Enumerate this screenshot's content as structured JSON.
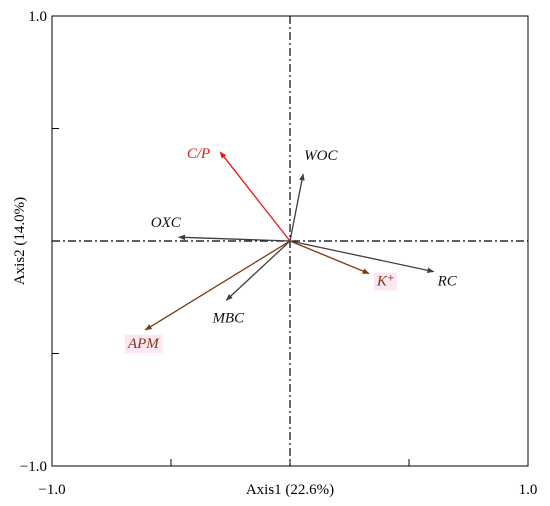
{
  "chart_data": {
    "type": "scatter",
    "subtype": "biplot-vectors",
    "xlabel": "Axis1 (22.6%)",
    "ylabel": "Axis2 (14.0%)",
    "xlim": [
      -1.0,
      1.0
    ],
    "ylim": [
      -1.0,
      1.0
    ],
    "x_tick_labels": [
      "−1.0",
      "1.0"
    ],
    "y_tick_labels": [
      "1.0",
      "−1.0"
    ],
    "grid": false,
    "legend": "none",
    "reference_lines": [
      "x=0 dash-dot",
      "y=0 dash-dot"
    ],
    "colors": {
      "gray": "#404040",
      "red": "#e8141b",
      "brown": "#7b3a12",
      "highlight": "#fde7f2"
    },
    "vectors": [
      {
        "label": "C/P",
        "x": -0.69,
        "y": 0.93,
        "color": "red"
      },
      {
        "label": "WOC",
        "x": 0.13,
        "y": 0.7,
        "color": "gray"
      },
      {
        "label": "OXC",
        "x": -1.1,
        "y": 0.04,
        "color": "gray"
      },
      {
        "label": "RC",
        "x": 1.42,
        "y": -0.32,
        "color": "gray"
      },
      {
        "label": "K⁺",
        "x": 0.78,
        "y": -0.34,
        "color": "brown",
        "highlight": true
      },
      {
        "label": "MBC",
        "x": -0.63,
        "y": -0.62,
        "color": "gray"
      },
      {
        "label": "APM",
        "x": -1.43,
        "y": -0.93,
        "color": "brown",
        "highlight": true
      }
    ]
  }
}
